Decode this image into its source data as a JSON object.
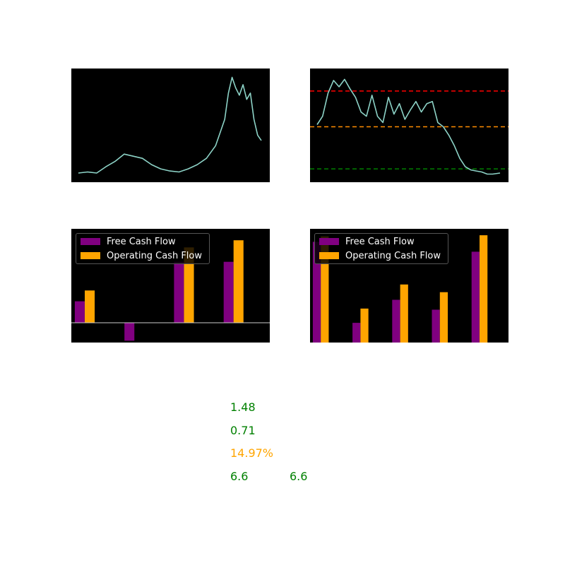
{
  "chart_data": [
    {
      "type": "line",
      "color": "#8dd3c7",
      "background": "#000000",
      "ylim": [
        0,
        100
      ],
      "x": [
        0,
        5,
        10,
        15,
        20,
        25,
        30,
        35,
        40,
        45,
        50,
        55,
        60,
        65,
        70,
        75,
        80,
        82,
        84,
        86,
        88,
        90,
        92,
        94,
        96,
        98,
        100
      ],
      "values": [
        4,
        5,
        4,
        10,
        15,
        22,
        20,
        18,
        12,
        8,
        6,
        5,
        8,
        12,
        18,
        30,
        55,
        80,
        95,
        85,
        78,
        88,
        74,
        80,
        55,
        40,
        35
      ]
    },
    {
      "type": "line",
      "color": "#8dd3c7",
      "background": "#000000",
      "ylim": [
        0,
        100
      ],
      "x": [
        0,
        3,
        6,
        9,
        12,
        15,
        18,
        21,
        24,
        27,
        30,
        33,
        36,
        39,
        42,
        45,
        48,
        51,
        54,
        57,
        60,
        63,
        66,
        69,
        72,
        75,
        78,
        81,
        84,
        87,
        90,
        93,
        96,
        100
      ],
      "values": [
        50,
        58,
        80,
        92,
        86,
        93,
        84,
        76,
        62,
        58,
        78,
        58,
        52,
        76,
        60,
        70,
        55,
        64,
        72,
        62,
        70,
        72,
        52,
        48,
        40,
        30,
        18,
        10,
        7,
        6,
        5,
        3,
        3,
        4
      ],
      "hlines": [
        {
          "y": 82,
          "color": "#ff0000"
        },
        {
          "y": 48,
          "color": "#ff8c00"
        },
        {
          "y": 8,
          "color": "#008000"
        }
      ]
    },
    {
      "type": "bar",
      "categories": [
        "",
        "",
        "",
        ""
      ],
      "ylim": [
        -22,
        100
      ],
      "zero_line": true,
      "series": [
        {
          "name": "Free Cash Flow",
          "color": "#800080",
          "values": [
            24,
            -20,
            68,
            68
          ]
        },
        {
          "name": "Operating Cash Flow",
          "color": "#ffa500",
          "values": [
            36,
            0,
            84,
            92
          ]
        }
      ],
      "legend": "top-left"
    },
    {
      "type": "bar",
      "categories": [
        "",
        "",
        "",
        "",
        ""
      ],
      "ylim": [
        0,
        100
      ],
      "series": [
        {
          "name": "Free Cash Flow",
          "color": "#800080",
          "values": [
            92,
            18,
            39,
            30,
            83
          ]
        },
        {
          "name": "Operating Cash Flow",
          "color": "#ffa500",
          "values": [
            97,
            31,
            53,
            46,
            98
          ]
        }
      ],
      "legend": "top-left"
    }
  ],
  "legend": {
    "fcf_label": "Free Cash Flow",
    "ocf_label": "Operating Cash Flow",
    "fcf_color": "#800080",
    "ocf_color": "#ffa500"
  },
  "metrics": {
    "m1": "1.48",
    "m2": "0.71",
    "m3": "14.97%",
    "m4a": "6.6",
    "m4b": "6.6",
    "green": "#008000",
    "orange": "#ffa500"
  }
}
